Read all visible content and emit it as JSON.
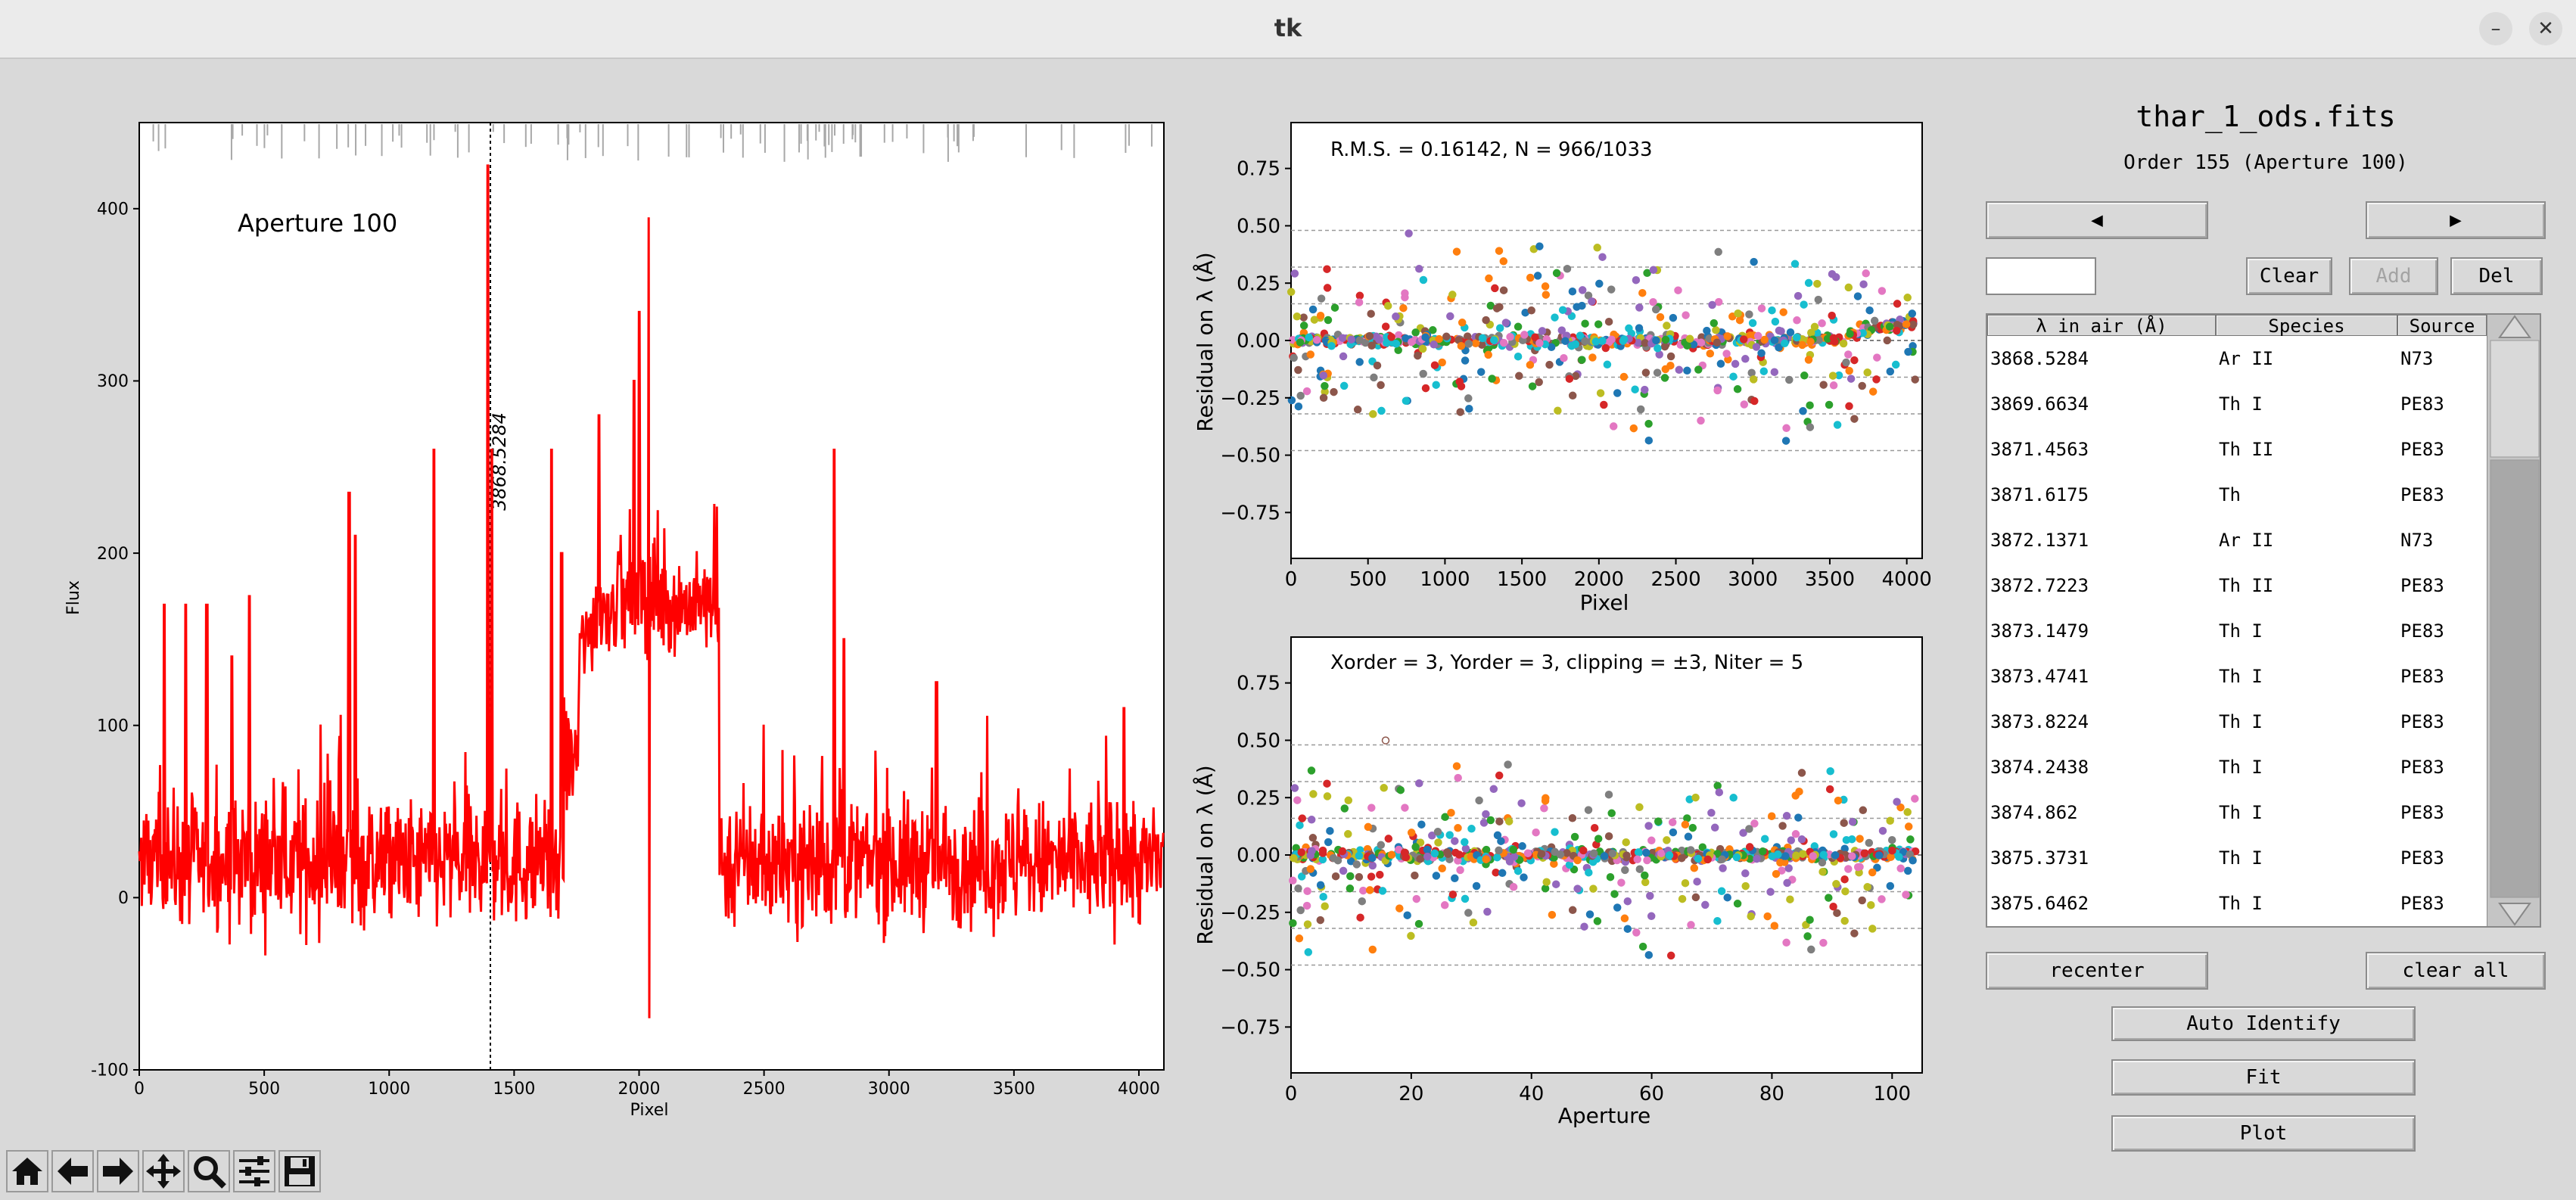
{
  "window": {
    "title": "tk",
    "minimize_label": "–",
    "close_label": "✕"
  },
  "spectrum_plot": {
    "aperture_label": "Aperture 100",
    "xlabel": "Pixel",
    "ylabel": "Flux",
    "x_ticks": [
      "0",
      "500",
      "1000",
      "1500",
      "2000",
      "2500",
      "3000",
      "3500",
      "4000"
    ],
    "y_ticks": [
      "-100",
      "0",
      "100",
      "200",
      "300",
      "400"
    ],
    "line_marker_label": "3868.5284",
    "line_color": "#ff0000"
  },
  "residual_pixel_plot": {
    "annotation": "R.M.S. = 0.16142, N = 966/1033",
    "xlabel": "Pixel",
    "ylabel": "Residual on λ (Å)",
    "x_ticks": [
      "0",
      "500",
      "1000",
      "1500",
      "2000",
      "2500",
      "3000",
      "3500",
      "4000"
    ],
    "y_ticks": [
      "0.75",
      "0.50",
      "0.25",
      "0.00",
      "−0.25",
      "−0.50",
      "−0.75"
    ]
  },
  "residual_aperture_plot": {
    "annotation": "Xorder = 3, Yorder = 3, clipping = ±3, Niter = 5",
    "xlabel": "Aperture",
    "ylabel": "Residual on λ (Å)",
    "x_ticks": [
      "0",
      "20",
      "40",
      "60",
      "80",
      "100"
    ],
    "y_ticks": [
      "0.75",
      "0.50",
      "0.25",
      "0.00",
      "−0.25",
      "−0.50",
      "−0.75"
    ]
  },
  "panel": {
    "filename": "thar_1_ods.fits",
    "order_label": "Order 155 (Aperture 100)",
    "prev_label": "◀",
    "next_label": "▶",
    "entry_value": "",
    "clear_label": "Clear",
    "add_label": "Add",
    "del_label": "Del",
    "recenter_label": "recenter",
    "clear_all_label": "clear all",
    "auto_identify_label": "Auto Identify",
    "fit_label": "Fit",
    "plot_label": "Plot"
  },
  "table": {
    "headers": [
      "λ in air (Å)",
      "Species",
      "Source"
    ],
    "rows": [
      [
        "3868.5284",
        "Ar II",
        "N73"
      ],
      [
        "3869.6634",
        "Th I",
        "PE83"
      ],
      [
        "3871.4563",
        "Th II",
        "PE83"
      ],
      [
        "3871.6175",
        "Th",
        "PE83"
      ],
      [
        "3872.1371",
        "Ar II",
        "N73"
      ],
      [
        "3872.7223",
        "Th II",
        "PE83"
      ],
      [
        "3873.1479",
        "Th I",
        "PE83"
      ],
      [
        "3873.4741",
        "Th I",
        "PE83"
      ],
      [
        "3873.8224",
        "Th I",
        "PE83"
      ],
      [
        "3874.2438",
        "Th I",
        "PE83"
      ],
      [
        "3874.862",
        "Th I",
        "PE83"
      ],
      [
        "3875.3731",
        "Th I",
        "PE83"
      ],
      [
        "3875.6462",
        "Th I",
        "PE83"
      ]
    ]
  },
  "toolbar": {
    "icons": [
      "home-icon",
      "back-arrow-icon",
      "forward-arrow-icon",
      "pan-icon",
      "zoom-icon",
      "configure-subplots-icon",
      "save-icon"
    ]
  }
}
